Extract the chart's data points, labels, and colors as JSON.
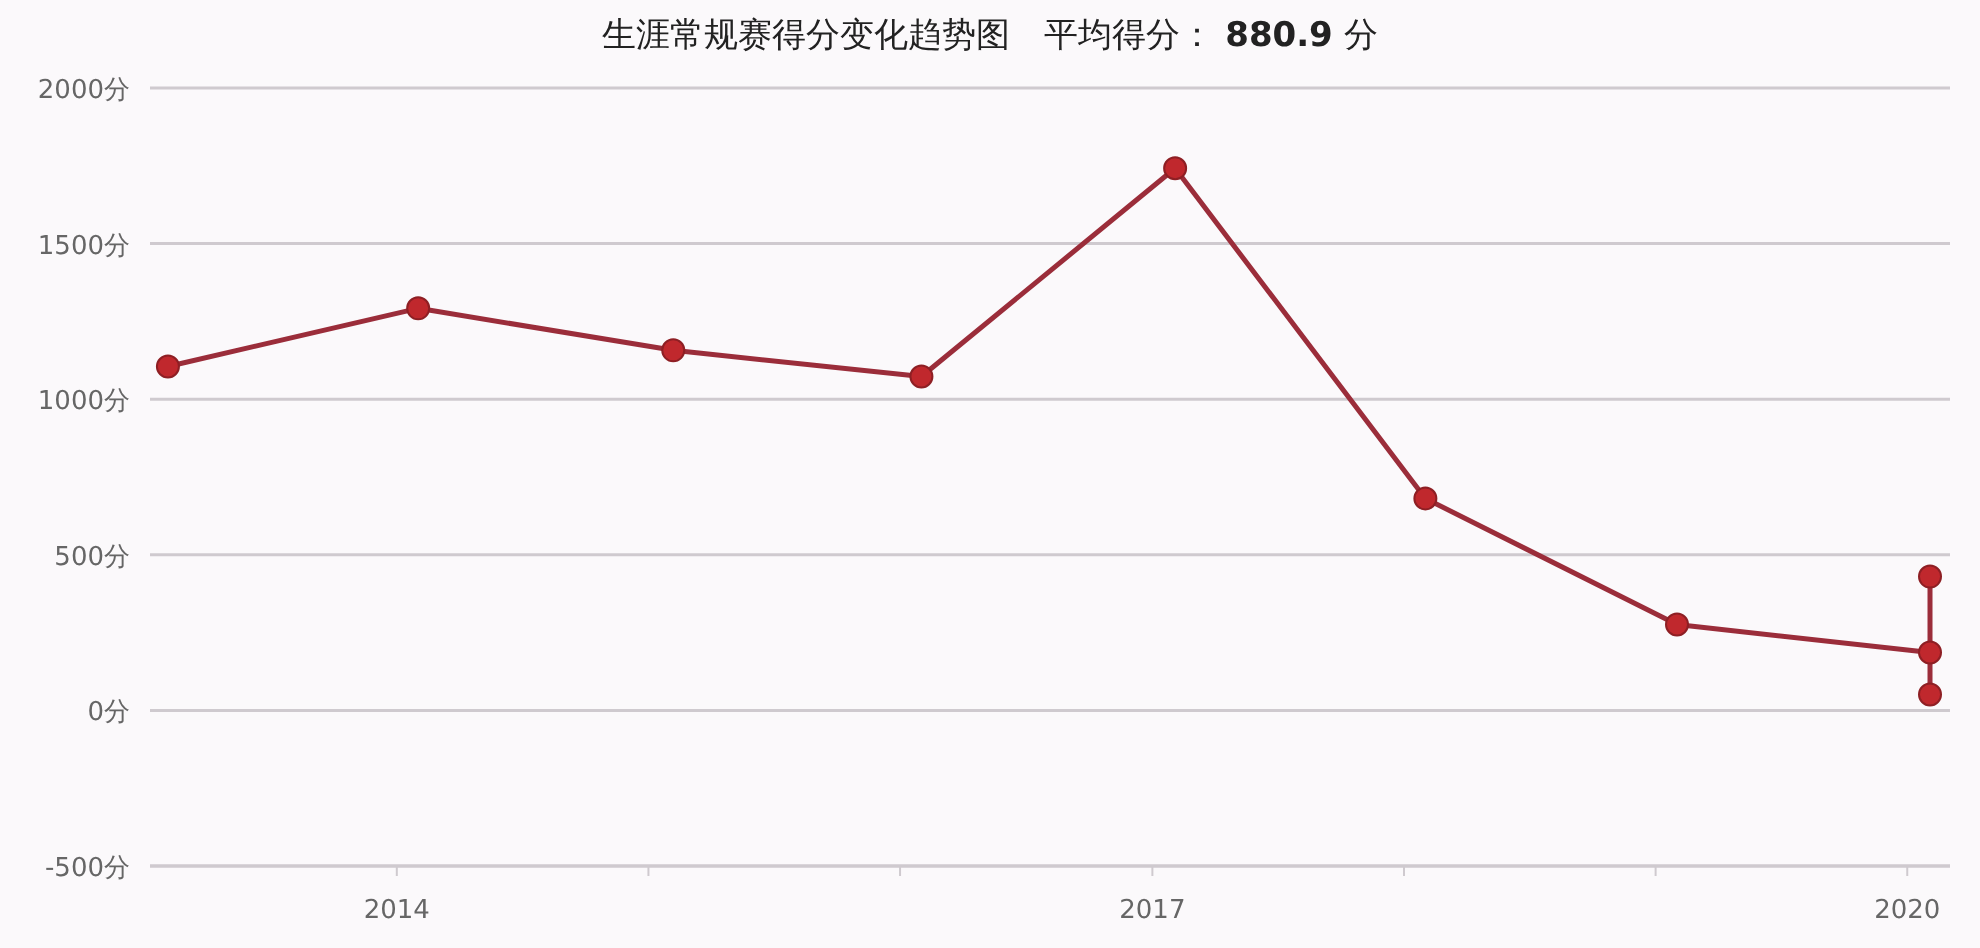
{
  "chart_data": {
    "type": "line",
    "title": "生涯常规赛得分变化趋势图　平均得分： 880.9 分",
    "x": [
      "2013-02-03",
      "2014-02-01",
      "2015-02-06",
      "2016-02-01",
      "2017-02-03",
      "2018-02-01",
      "2019-02-01",
      "2020-02-03",
      "2020-02-03",
      "2020-02-03"
    ],
    "series": [
      {
        "color": "#9b2d3a",
        "values": [
          1105,
          1292,
          1157,
          1073,
          1742,
          681,
          276,
          186,
          430,
          51
        ]
      }
    ],
    "xlim": [
      "2013-01-08",
      "2020-03-03"
    ],
    "xticks": [
      {
        "value": "2014-01-01",
        "label": "2014"
      },
      {
        "value": "2015-01-01",
        "label": null
      },
      {
        "value": "2016-01-01",
        "label": null
      },
      {
        "value": "2017-01-01",
        "label": "2017"
      },
      {
        "value": "2018-01-01",
        "label": null
      },
      {
        "value": "2019-01-01",
        "label": null
      },
      {
        "value": "2020-01-01",
        "label": "2020"
      }
    ],
    "ylim": [
      -500,
      2000
    ],
    "yticks": [
      {
        "value": -500,
        "label": "-500分"
      },
      {
        "value": 0,
        "label": "0分"
      },
      {
        "value": 500,
        "label": "500分"
      },
      {
        "value": 1000,
        "label": "1000分"
      },
      {
        "value": 1500,
        "label": "1500分"
      },
      {
        "value": 2000,
        "label": "2000分"
      }
    ],
    "grid": "y",
    "marker": "circle",
    "line_style": "solid"
  }
}
